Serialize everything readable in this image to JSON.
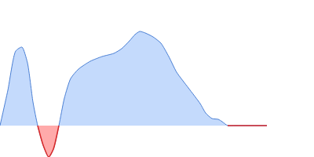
{
  "chart_data": {
    "type": "area",
    "x": [
      0,
      10,
      20,
      28,
      35,
      42,
      48,
      55,
      62,
      68,
      75,
      82,
      90,
      100,
      115,
      130,
      145,
      155,
      165,
      172,
      178,
      185,
      195,
      205,
      215,
      225,
      240,
      255,
      262,
      270,
      278,
      283,
      290,
      300,
      340
    ],
    "values": [
      0,
      45,
      95,
      100,
      80,
      30,
      0,
      -25,
      -40,
      -30,
      0,
      35,
      60,
      72,
      82,
      88,
      92,
      98,
      108,
      116,
      120,
      118,
      113,
      105,
      88,
      68,
      48,
      28,
      16,
      9,
      8,
      5,
      0,
      0,
      0
    ],
    "colors": [
      "#4a7fd4",
      "#d62728"
    ],
    "xlim": [
      0,
      400
    ],
    "ylim": [
      -40,
      160
    ],
    "grid": false,
    "tick_labels": false
  }
}
